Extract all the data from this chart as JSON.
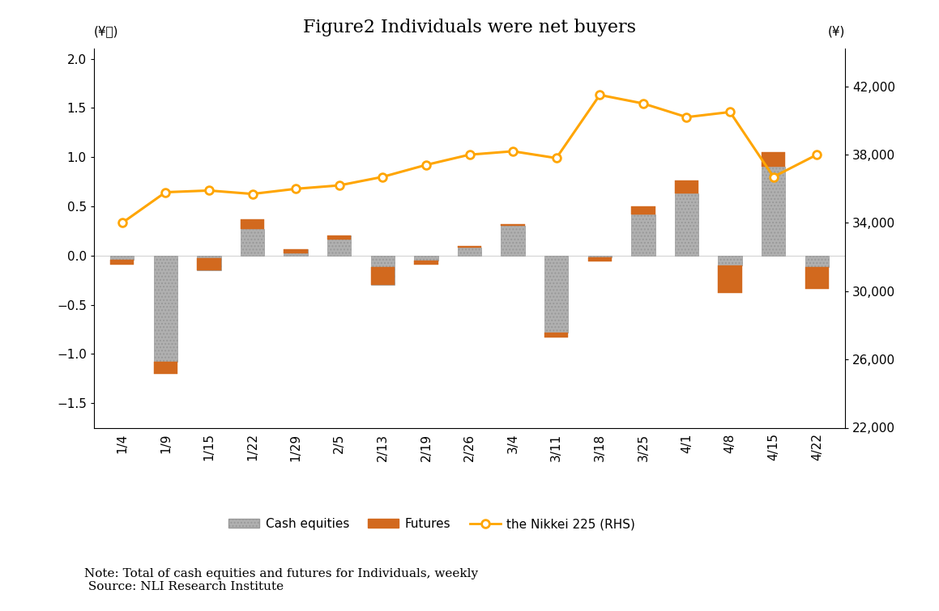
{
  "title": "Figure2 Individuals were net buyers",
  "categories": [
    "1/4",
    "1/9",
    "1/15",
    "1/22",
    "1/29",
    "2/5",
    "2/13",
    "2/19",
    "2/26",
    "3/4",
    "3/11",
    "3/18",
    "3/25",
    "4/1",
    "4/8",
    "4/15",
    "4/22"
  ],
  "cash_equities": [
    -0.04,
    -1.08,
    -0.15,
    0.27,
    0.06,
    0.2,
    -0.3,
    -0.05,
    0.08,
    0.3,
    -0.78,
    -0.02,
    0.42,
    0.63,
    -0.1,
    0.9,
    -0.12
  ],
  "futures": [
    -0.05,
    -0.12,
    0.12,
    0.1,
    -0.04,
    -0.04,
    0.18,
    -0.04,
    0.02,
    0.02,
    -0.05,
    -0.04,
    0.08,
    0.13,
    -0.28,
    0.15,
    -0.22
  ],
  "nikkei": [
    34000,
    35800,
    35900,
    35700,
    36000,
    36200,
    36700,
    37400,
    38000,
    38200,
    37800,
    41500,
    41000,
    40200,
    40500,
    36700,
    38000
  ],
  "cash_color": "#b0b0b0",
  "futures_color": "#d2691e",
  "line_color": "#FFA500",
  "ylim_left": [
    -1.75,
    2.1
  ],
  "ylim_right": [
    22000,
    44200
  ],
  "ylabel_left": "(¥兆)",
  "ylabel_right": "(¥)",
  "note_line1": "Note: Total of cash equities and futures for Individuals, weekly",
  "note_line2": " Source: NLI Research Institute",
  "legend_labels": [
    "Cash equities",
    "Futures",
    "the Nikkei 225 (RHS)"
  ],
  "yticks_left": [
    -1.5,
    -1.0,
    -0.5,
    0.0,
    0.5,
    1.0,
    1.5,
    2.0
  ],
  "yticks_right": [
    22000,
    26000,
    30000,
    34000,
    38000,
    42000
  ],
  "ytick_right_labels": [
    "22,000",
    "26,000",
    "30,000",
    "34,000",
    "38,000",
    "42,000"
  ]
}
